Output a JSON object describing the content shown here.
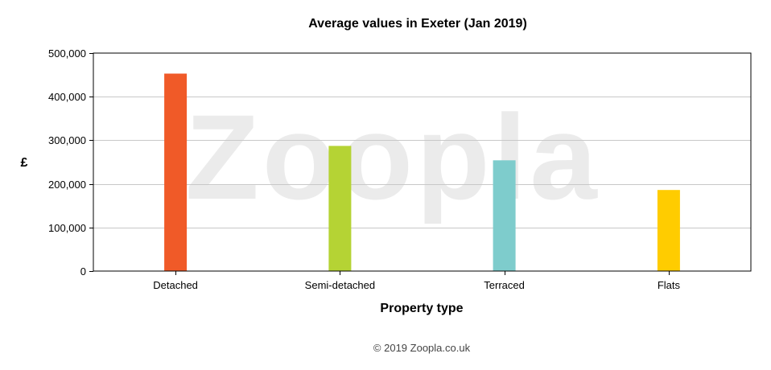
{
  "chart_data": {
    "type": "bar",
    "title": "Average values in Exeter (Jan 2019)",
    "xlabel": "Property type",
    "ylabel": "£",
    "categories": [
      "Detached",
      "Semi-detached",
      "Terraced",
      "Flats"
    ],
    "values": [
      453000,
      287000,
      254000,
      186000
    ],
    "bar_colors": [
      "#f05a28",
      "#b5d334",
      "#7ecccc",
      "#ffcc00"
    ],
    "ylim": [
      0,
      500000
    ],
    "yticks": [
      0,
      100000,
      200000,
      300000,
      400000,
      500000
    ],
    "ytick_labels": [
      "0",
      "100,000",
      "200,000",
      "300,000",
      "400,000",
      "500,000"
    ],
    "grid": true,
    "legend": "none"
  },
  "watermark": {
    "text": "Zoopla"
  },
  "footer": {
    "copyright": "© 2019 Zoopla.co.uk"
  }
}
